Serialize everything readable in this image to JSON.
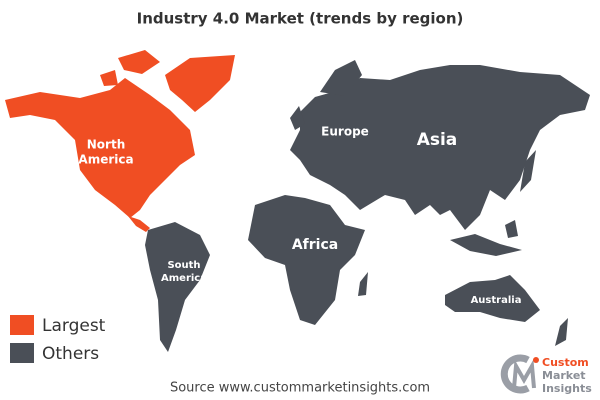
{
  "title": "Industry 4.0  Market (trends by region)",
  "regions": [
    {
      "lines": [
        "North",
        "America"
      ]
    },
    {
      "lines": [
        "Europe"
      ]
    },
    {
      "lines": [
        "Asia"
      ]
    },
    {
      "lines": [
        "Africa"
      ]
    },
    {
      "lines": [
        "South",
        "America"
      ]
    },
    {
      "lines": [
        "Australia"
      ]
    }
  ],
  "legend": [
    {
      "label": "Largest",
      "color": "#f04e23"
    },
    {
      "label": "Others",
      "color": "#4a4f57"
    }
  ],
  "source": "Source www.custommarketinsights.com",
  "logo": {
    "lines": [
      "Custom",
      "Market",
      "Insights"
    ]
  }
}
